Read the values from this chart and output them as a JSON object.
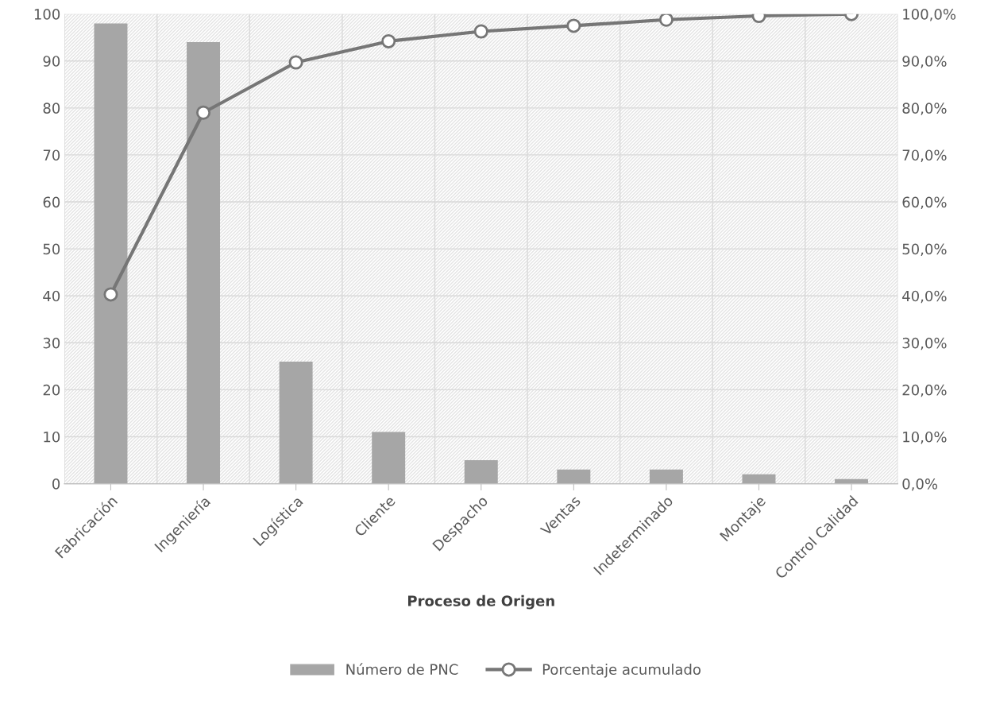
{
  "chart_data": {
    "type": "bar",
    "xlabel": "Proceso de Origen",
    "categories": [
      "Fabricación",
      "Ingeniería",
      "Logística",
      "Cliente",
      "Despacho",
      "Ventas",
      "Indeterminado",
      "Montaje",
      "Control Calidad"
    ],
    "series": [
      {
        "name": "Número de PNC",
        "color": "#a6a6a6",
        "values": [
          98,
          94,
          26,
          11,
          5,
          3,
          3,
          2,
          1
        ]
      },
      {
        "name": "Porcentaje acumulado",
        "type": "line",
        "axis": "y2",
        "color": "#767676",
        "marker": "circle",
        "values": [
          40.3,
          79.0,
          89.7,
          94.2,
          96.3,
          97.5,
          98.8,
          99.6,
          100.0
        ]
      }
    ],
    "ylim": [
      0,
      100
    ],
    "yticks": [
      0,
      10,
      20,
      30,
      40,
      50,
      60,
      70,
      80,
      90,
      100
    ],
    "y2lim": [
      0,
      100
    ],
    "y2ticks": [
      {
        "value": 0,
        "label": "0,0%"
      },
      {
        "value": 10,
        "label": "10,0%"
      },
      {
        "value": 20,
        "label": "20,0%"
      },
      {
        "value": 30,
        "label": "30,0%"
      },
      {
        "value": 40,
        "label": "40,0%"
      },
      {
        "value": 50,
        "label": "50,0%"
      },
      {
        "value": 60,
        "label": "60,0%"
      },
      {
        "value": 70,
        "label": "70,0%"
      },
      {
        "value": 80,
        "label": "80,0%"
      },
      {
        "value": 90,
        "label": "90,0%"
      },
      {
        "value": 100,
        "label": "100,0%"
      }
    ],
    "grid": true,
    "legend": "bottom"
  }
}
